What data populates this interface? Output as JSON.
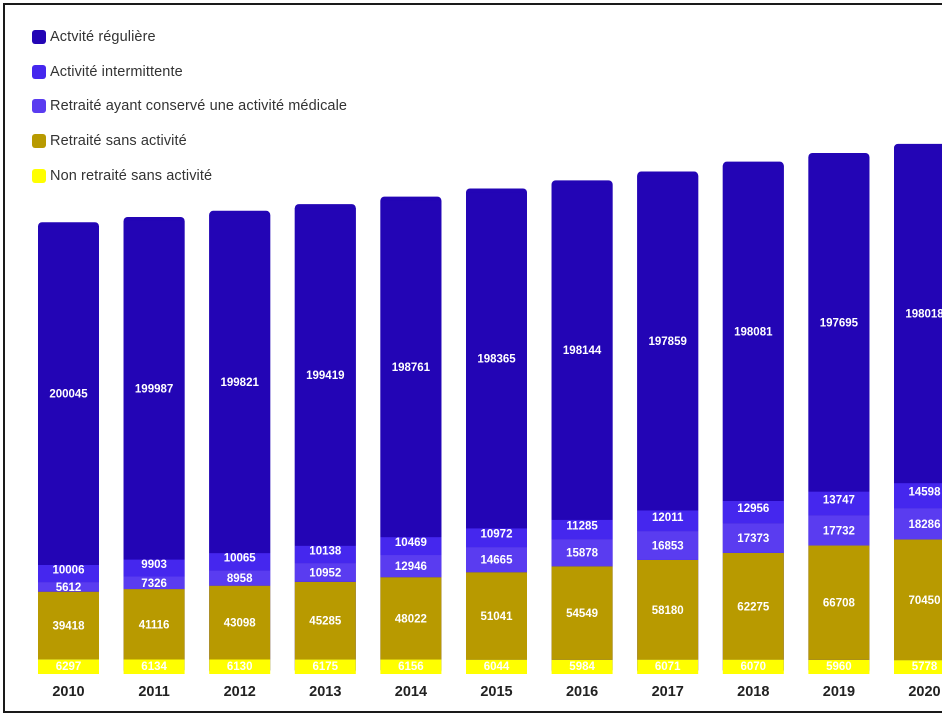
{
  "chart_data": {
    "type": "bar",
    "stacked": true,
    "title": "",
    "xlabel": "",
    "ylabel": "",
    "categories": [
      "2010",
      "2011",
      "2012",
      "2013",
      "2014",
      "2015",
      "2016",
      "2017",
      "2018",
      "2019",
      "2020"
    ],
    "series": [
      {
        "name": "Non retraité sans activité",
        "color": "#ffff00",
        "values": [
          6297,
          6134,
          6130,
          6175,
          6156,
          6044,
          5984,
          6071,
          6070,
          5960,
          5778
        ]
      },
      {
        "name": "Retraité sans activité",
        "color": "#b89a00",
        "values": [
          39418,
          41116,
          43098,
          45285,
          48022,
          51041,
          54549,
          58180,
          62275,
          66708,
          70450
        ]
      },
      {
        "name": "Retraité ayant conservé une activité médicale",
        "color": "#5a3cf0",
        "values": [
          5612,
          7326,
          8958,
          10952,
          12946,
          14665,
          15878,
          16853,
          17373,
          17732,
          18286
        ]
      },
      {
        "name": "Activité intermittente",
        "color": "#4527ee",
        "values": [
          10006,
          9903,
          10065,
          10138,
          10469,
          10972,
          11285,
          12011,
          12956,
          13747,
          14598
        ]
      },
      {
        "name": "Actvité régulière",
        "color": "#2305b5",
        "values": [
          200045,
          199987,
          199821,
          199419,
          198761,
          198365,
          198144,
          197859,
          198081,
          197695,
          198018
        ]
      }
    ],
    "legend": {
      "position": "top-left",
      "items": [
        {
          "label": "Actvité régulière",
          "color": "#2305b5"
        },
        {
          "label": "Activité intermittente",
          "color": "#4527ee"
        },
        {
          "label": "Retraité ayant conservé une activité médicale",
          "color": "#5a3cf0"
        },
        {
          "label": "Retraité sans activité",
          "color": "#b89a00"
        },
        {
          "label": "Non retraité sans activité",
          "color": "#ffff00"
        }
      ]
    },
    "grid": false
  }
}
